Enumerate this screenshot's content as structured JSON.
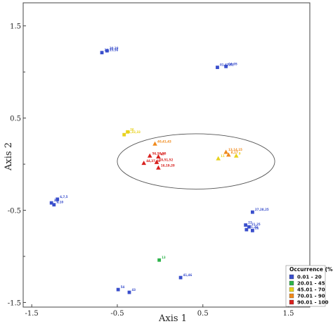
{
  "chart_data": {
    "type": "scatter",
    "xlabel": "Axis 1",
    "ylabel": "Axis 2",
    "xlim": [
      -1.6,
      1.75
    ],
    "ylim": [
      -1.55,
      1.75
    ],
    "x_ticks": [
      "-1.5",
      "-0.5",
      "0.5",
      "1.5"
    ],
    "y_ticks": [
      "1.5",
      "0.5",
      "-0.5",
      "-1.5"
    ],
    "x_tick_values": [
      -1.5,
      -0.5,
      0.5,
      1.5
    ],
    "y_tick_values": [
      1.5,
      0.5,
      -0.5,
      -1.5
    ],
    "y_minor_ticks": [
      1.0,
      0.0,
      -1.0
    ],
    "ellipse": {
      "cx": 0.42,
      "cy": 0.03,
      "rx": 0.92,
      "ry": 0.3
    },
    "legend": {
      "title": "Occurrence (%)",
      "position": "bottom-right",
      "entries": [
        {
          "label": "0.01 - 20",
          "color": "#3a4fcc"
        },
        {
          "label": "20.01 - 45",
          "color": "#2db34a"
        },
        {
          "label": "45.01 - 70",
          "color": "#e8d21e"
        },
        {
          "label": "70.01 - 90",
          "color": "#f08a1c"
        },
        {
          "label": "90.01 - 100",
          "color": "#d8211e"
        }
      ]
    },
    "points": [
      {
        "x": -0.68,
        "y": 1.21,
        "cls": 0,
        "m": "s",
        "label": "24,35,36"
      },
      {
        "x": -0.62,
        "y": 1.23,
        "cls": 0,
        "m": "s",
        "label": "30,38"
      },
      {
        "x": 0.67,
        "y": 1.05,
        "cls": 0,
        "m": "s",
        "label": "01,42,61"
      },
      {
        "x": 0.77,
        "y": 1.06,
        "cls": 0,
        "m": "s",
        "label": "04,05"
      },
      {
        "x": -0.42,
        "y": 0.32,
        "cls": 2,
        "m": "s",
        "label": "31,32,33"
      },
      {
        "x": -0.38,
        "y": 0.35,
        "cls": 2,
        "m": "s",
        "label": "26"
      },
      {
        "x": -0.06,
        "y": 0.22,
        "cls": 3,
        "m": "t",
        "label": "40,41,43"
      },
      {
        "x": -0.12,
        "y": 0.09,
        "cls": 4,
        "m": "t",
        "label": "56,58,55"
      },
      {
        "x": -0.02,
        "y": 0.08,
        "cls": 4,
        "m": "t",
        "label": "47"
      },
      {
        "x": -0.19,
        "y": 0.01,
        "cls": 4,
        "m": "t",
        "label": "44,37,48"
      },
      {
        "x": -0.04,
        "y": 0.02,
        "cls": 4,
        "m": "t",
        "label": "10,51,52"
      },
      {
        "x": -0.02,
        "y": -0.04,
        "cls": 4,
        "m": "t",
        "label": "16,19,20"
      },
      {
        "x": 0.77,
        "y": 0.13,
        "cls": 3,
        "m": "t",
        "label": "13,14,15"
      },
      {
        "x": 0.8,
        "y": 0.1,
        "cls": 3,
        "m": "t",
        "label": "8,17"
      },
      {
        "x": 0.68,
        "y": 0.06,
        "cls": 2,
        "m": "t",
        "label": "11"
      },
      {
        "x": 0.89,
        "y": 0.09,
        "cls": 2,
        "m": "t",
        "label": "9"
      },
      {
        "x": -1.2,
        "y": -0.38,
        "cls": 0,
        "m": "s",
        "label": "6,7,5"
      },
      {
        "x": -1.27,
        "y": -0.42,
        "cls": 0,
        "m": "s",
        "label": "3,4"
      },
      {
        "x": -1.24,
        "y": -0.44,
        "cls": 0,
        "m": "s",
        "label": "9,10"
      },
      {
        "x": 1.08,
        "y": -0.52,
        "cls": 0,
        "m": "s",
        "label": "27,28,25"
      },
      {
        "x": 1.0,
        "y": -0.66,
        "cls": 0,
        "m": "s",
        "label": "22"
      },
      {
        "x": 1.04,
        "y": -0.68,
        "cls": 0,
        "m": "s",
        "label": "21,25"
      },
      {
        "x": 1.01,
        "y": -0.71,
        "cls": 0,
        "m": "s",
        "label": "21,23"
      },
      {
        "x": 1.08,
        "y": -0.72,
        "cls": 0,
        "m": "s",
        "label": "26"
      },
      {
        "x": -0.01,
        "y": -1.04,
        "cls": 1,
        "m": "s",
        "label": "13"
      },
      {
        "x": 0.24,
        "y": -1.23,
        "cls": 0,
        "m": "s",
        "label": "41,46"
      },
      {
        "x": -0.49,
        "y": -1.36,
        "cls": 0,
        "m": "s",
        "label": "54"
      },
      {
        "x": -0.36,
        "y": -1.39,
        "cls": 0,
        "m": "s",
        "label": "43"
      }
    ]
  }
}
